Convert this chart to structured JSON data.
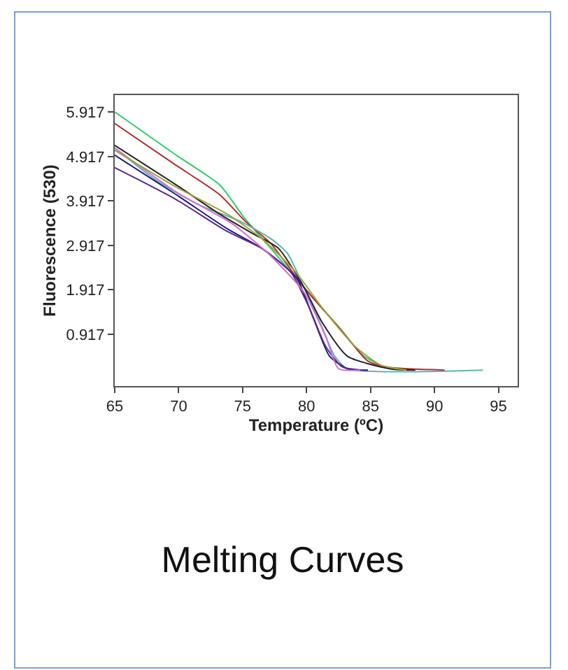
{
  "chart_data": {
    "type": "line",
    "title": "Melting Curves",
    "xlabel": "Temperature (ºC)",
    "ylabel": "Fluorescence (530)",
    "xlim": [
      65,
      96.5
    ],
    "ylim": [
      -0.25,
      6.3
    ],
    "xticks": [
      65,
      70,
      75,
      80,
      85,
      90,
      95
    ],
    "yticks": [
      0.917,
      1.917,
      2.917,
      3.917,
      4.917,
      5.917
    ],
    "grid": false,
    "marker": "none",
    "line_style": "solid",
    "series": [
      {
        "color": "#33cc66",
        "x": [
          65,
          69.8,
          73.2,
          75.2,
          77.2,
          79.8,
          82.5,
          84.5,
          86.5,
          88
        ],
        "values": [
          5.92,
          4.95,
          4.28,
          3.51,
          2.85,
          1.97,
          1.08,
          0.42,
          0.14,
          0.11
        ]
      },
      {
        "color": "#b03030",
        "x": [
          65,
          69.8,
          73.2,
          75.2,
          77.2,
          79.8,
          82.5,
          84.8,
          86.5,
          90.8
        ],
        "values": [
          5.66,
          4.72,
          4.06,
          3.46,
          2.96,
          1.97,
          1.08,
          0.31,
          0.17,
          0.11
        ]
      },
      {
        "color": "#5fb3b3",
        "x": [
          65,
          68.2,
          71.5,
          74.8,
          77.2,
          78.5,
          79.8,
          81.2,
          82.2,
          83.2,
          93.8
        ],
        "values": [
          5.11,
          4.39,
          3.84,
          3.46,
          3.07,
          2.74,
          1.97,
          1.08,
          0.42,
          0.14,
          0.11
        ]
      },
      {
        "color": "#222222",
        "x": [
          65,
          69.8,
          73.2,
          75.8,
          77.8,
          79.8,
          81.2,
          83.2,
          86.5,
          88.5
        ],
        "values": [
          5.17,
          4.28,
          3.62,
          3.18,
          2.85,
          1.97,
          1.19,
          0.42,
          0.14,
          0.11
        ]
      },
      {
        "color": "#1a1a80",
        "x": [
          65,
          69.8,
          73.8,
          76.5,
          79.2,
          80.5,
          81.8,
          83.2,
          84.8
        ],
        "values": [
          4.95,
          4.06,
          3.29,
          2.85,
          2.19,
          1.3,
          0.42,
          0.14,
          0.11
        ]
      },
      {
        "color": "#5a2a8a",
        "x": [
          65,
          69.8,
          73.8,
          76.5,
          78.8,
          80.2,
          81.5,
          82.8,
          84.5
        ],
        "values": [
          4.67,
          3.95,
          3.23,
          2.85,
          2.3,
          1.52,
          0.64,
          0.18,
          0.11
        ]
      },
      {
        "color": "#d070d0",
        "x": [
          65,
          69.8,
          74.2,
          77.2,
          79.8,
          81.5,
          82.5,
          84.2
        ],
        "values": [
          5.11,
          4.12,
          3.4,
          2.68,
          1.86,
          0.86,
          0.14,
          0.11
        ]
      },
      {
        "color": "#a0a040",
        "x": [
          65,
          69.8,
          73.8,
          76.5,
          79.2,
          81.2,
          83.8,
          85.8,
          87.8
        ],
        "values": [
          5.06,
          4.23,
          3.62,
          3.07,
          2.3,
          1.52,
          0.64,
          0.22,
          0.11
        ]
      }
    ]
  }
}
